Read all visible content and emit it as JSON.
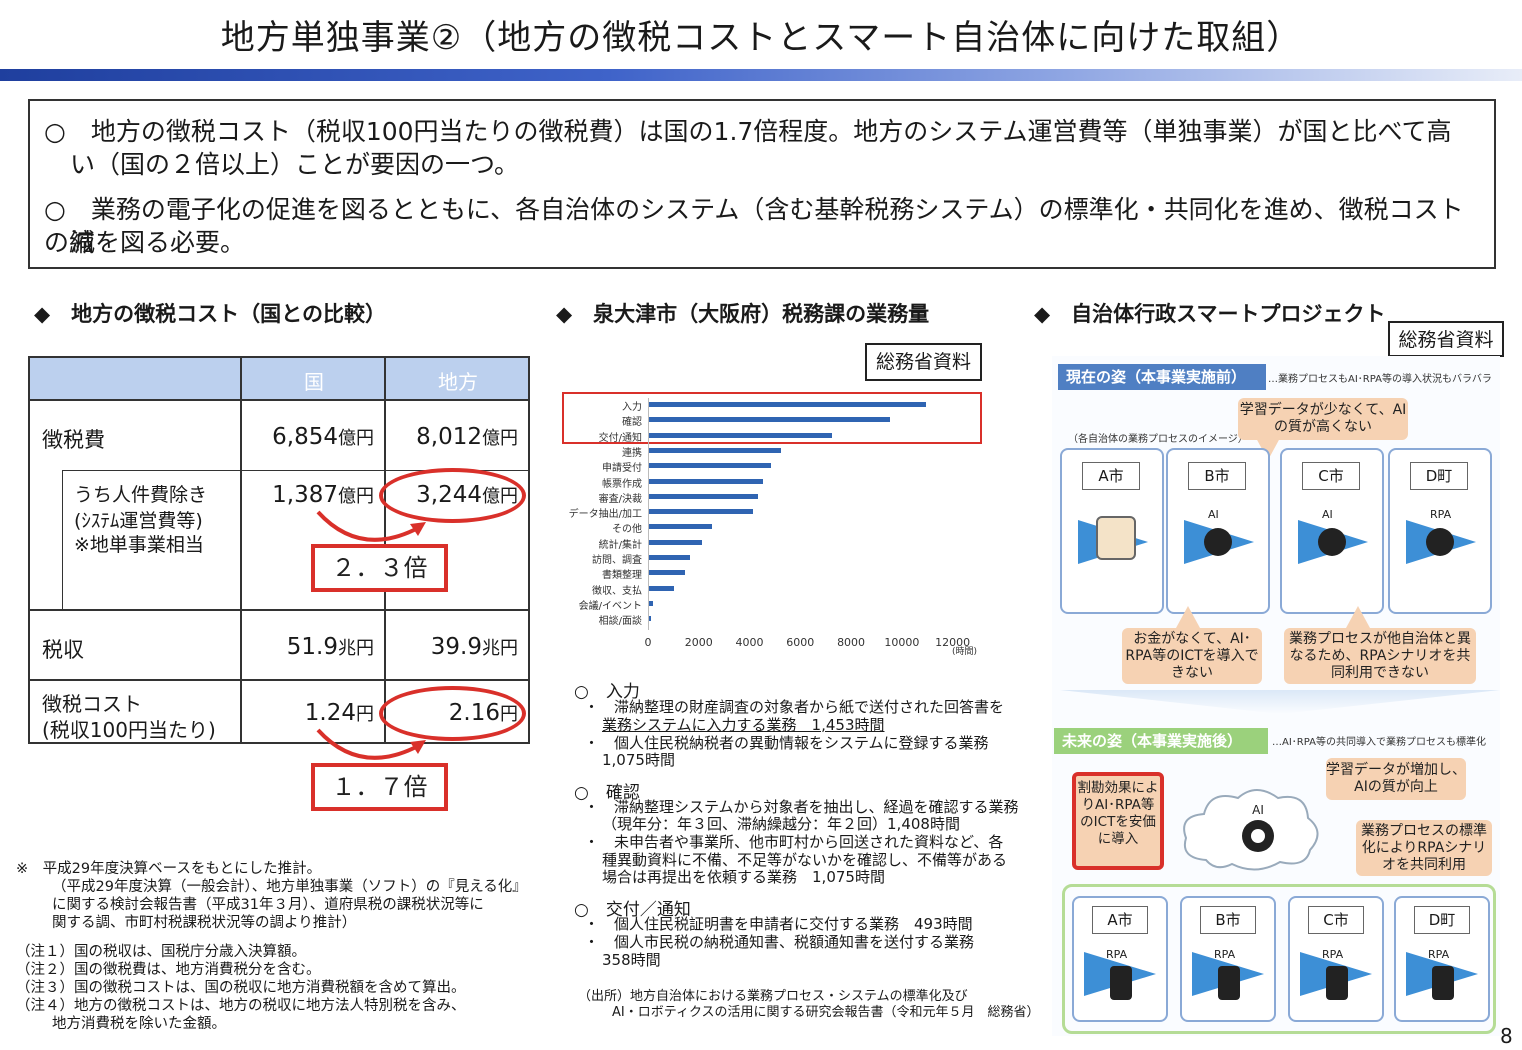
{
  "title": "地方単独事業②（地方の徴税コストとスマート自治体に向けた取組）",
  "summary": {
    "bullet1": "○　地方の徴税コスト（税収100円当たりの徴税費）は国の1.7倍程度。地方のシステム運営費等（単独事業）が国と比べて高",
    "bullet1b": "い（国の２倍以上）ことが要因の一つ。",
    "bullet2": "○　業務の電子化の促進を図るとともに、各自治体のシステム（含む基幹税務システム）の標準化・共同化を進め、徴税コストの縮",
    "bullet2b": "減を図る必要。"
  },
  "left": {
    "heading": "◆　地方の徴税コスト（国との比較）",
    "col_national": "国",
    "col_local": "地方",
    "r1_label": "徴税費",
    "r1_nat": "6,854",
    "r1_loc": "8,012",
    "unit_oku": "億円",
    "r2_label1": "うち人件費除き",
    "r2_label2": "(ｼｽﾃﾑ運営費等)",
    "r2_label3": "※地単事業相当",
    "r2_nat": "1,387",
    "r2_loc": "3,244",
    "ratio1": "２．３倍",
    "r3_label": "税収",
    "r3_nat": "51.9",
    "r3_loc": "39.9",
    "unit_cho": "兆円",
    "r4_label1": "徴税コスト",
    "r4_label2": "(税収100円当たり)",
    "r4_nat": "1.24",
    "r4_loc": "2.16",
    "unit_yen": "円",
    "ratio2": "１．７倍",
    "notes": [
      "※　平成29年度決算ベースをもとにした推計。",
      "（平成29年度決算（一般会計）、地方単独事業（ソフト）の『見える化』",
      "に関する検討会報告書（平成31年３月）、道府県税の課税状況等に",
      "関する調、市町村税課税状況等の調より推計）",
      "（注１）国の税収は、国税庁分歳入決算額。",
      "（注２）国の徴税費は、地方消費税分を含む。",
      "（注３）国の徴税コストは、国の税収に地方消費税額を含めて算出。",
      "（注４）地方の徴税コストは、地方の税収に地方法人特別税を含み、",
      "地方消費税を除いた金額。"
    ]
  },
  "middle": {
    "heading": "◆　泉大津市（大阪府）税務課の業務量",
    "stamp": "総務省資料",
    "x_unit": "(時間)",
    "details": {
      "h1": "○　入力",
      "h1_l1": "・　滞納整理の財産調査の対象者から紙で送付された回答書を",
      "h1_l2": "業務システムに入力する業務　1,453時間",
      "h1_l3": "・　個人住民税納税者の異動情報をシステムに登録する業務",
      "h1_l4": "1,075時間",
      "h2": "○　確認",
      "h2_l1": "・　滞納整理システムから対象者を抽出し、経過を確認する業務",
      "h2_l2": "（現年分：年３回、滞納繰越分：年２回）1,408時間",
      "h2_l3": "・　未申告者や事業所、他市町村から回送された資料など、各",
      "h2_l4": "種異動資料に不備、不足等がないかを確認し、不備等がある",
      "h2_l5": "場合は再提出を依頼する業務　1,075時間",
      "h3": "○　交付／通知",
      "h3_l1": "・　個人住民税証明書を申請者に交付する業務　493時間",
      "h3_l2": "・　個人市民税の納税通知書、税額通知書を送付する業務",
      "h3_l3": "358時間",
      "src1": "（出所）地方自治体における業務プロセス・システムの標準化及び",
      "src2": "AI・ロボティクスの活用に関する研究会報告書（令和元年５月　総務省）"
    }
  },
  "chart_data": {
    "type": "bar",
    "orientation": "horizontal",
    "categories": [
      "入力",
      "確認",
      "交付/通知",
      "連携",
      "申請受付",
      "帳票作成",
      "審査/決裁",
      "データ抽出/加工",
      "その他",
      "統計/集計",
      "訪問、調査",
      "書類整理",
      "徴収、支払",
      "会議/イベント",
      "相談/面談"
    ],
    "values": [
      10900,
      9500,
      7200,
      5200,
      4800,
      4500,
      4300,
      4100,
      2500,
      2100,
      1600,
      1400,
      1000,
      150,
      80
    ],
    "xlim": [
      0,
      13000
    ],
    "xticks": [
      0,
      2000,
      4000,
      6000,
      8000,
      10000,
      12000
    ],
    "xlabel": "(時間)",
    "highlighted": [
      "入力",
      "確認",
      "交付/通知"
    ]
  },
  "right": {
    "heading": "◆　自治体行政スマートプロジェクト",
    "stamp": "総務省資料",
    "now_banner": "現在の姿（本事業実施前）",
    "now_note": "…業務プロセスもAI･RPA等の導入状況もバラバラ",
    "now_sub": "（各自治体の業務プロセスのイメージ）",
    "bubble_data": "学習データが少なくて、AIの質が高くない",
    "bubble_money": "お金がなくて、AI･RPA等のICTを導入できない",
    "bubble_process": "業務プロセスが他自治体と異なるため、RPAシナリオを共同利用できない",
    "future_banner": "未来の姿（本事業実施後）",
    "future_note": "…AI･RPA等の共同導入で業務プロセスも標準化",
    "bubble_split": "割勘効果によりAI･RPA等のICTを安価に導入",
    "bubble_more": "学習データが増加し、AIの質が向上",
    "bubble_std": "業務プロセスの標準化によりRPAシナリオを共同利用",
    "cities": [
      "A市",
      "B市",
      "C市",
      "D町"
    ],
    "ai": "AI",
    "rpa": "RPA"
  },
  "page_number": "8"
}
